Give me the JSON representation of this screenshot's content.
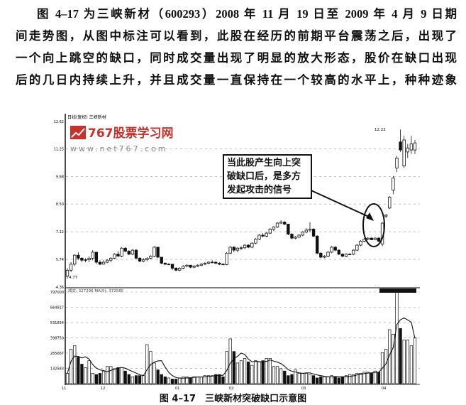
{
  "paragraph": {
    "lines": [
      "图 4–17 为三峡新材（600293）2008 年 11 月 19 日至 2009 年 4 月 9 日期",
      "间走势图，从图中标注可以看到，此股在经历的前期平台震荡之后，出现了",
      "一个向上跳空的缺口，同时成交量出现了明显的放大形态，股价在缺口出现",
      "后的几日内持续上升，并且成交量一直保持在一个较高的水平上，种种迹象"
    ]
  },
  "figure": {
    "caption": "图 4–17　三峡新材突破缺口示意图",
    "watermark": {
      "name": "767股票学习网",
      "url": "www.net767.com",
      "color": "#c8302a"
    },
    "callout": [
      "当此股产生向上突",
      "破缺口后，是多方",
      "发起攻击的信号"
    ]
  },
  "chart_data": {
    "type": "candlestick",
    "header": "日线(复权)  三峡新材",
    "volume_header": "成交: 327296 MA(5): 372585",
    "price_ticks": [
      "12.62",
      "11.25",
      "9.88",
      "8.50",
      "7.12",
      "5.74",
      "4.36"
    ],
    "ylim": [
      4.36,
      12.62
    ],
    "volume_ticks": [
      "797000",
      "664917",
      "531834",
      "398750",
      "265667",
      "132583"
    ],
    "volume_lim": [
      0,
      797000
    ],
    "x_ticks": [
      "11",
      "12",
      "01",
      "02",
      "03",
      "04"
    ],
    "annotations": {
      "low": "4.77",
      "high": "12.22"
    },
    "grid": true,
    "candles_ohlc": [
      [
        4.9,
        5.3,
        4.77,
        5.2
      ],
      [
        5.2,
        5.6,
        5.1,
        5.5
      ],
      [
        5.5,
        6.0,
        5.4,
        5.95
      ],
      [
        5.95,
        6.1,
        5.7,
        5.8
      ],
      [
        5.8,
        5.85,
        5.6,
        5.7
      ],
      [
        5.7,
        5.8,
        5.6,
        5.72
      ],
      [
        5.72,
        5.9,
        5.6,
        5.8
      ],
      [
        5.8,
        6.2,
        5.7,
        6.1
      ],
      [
        6.1,
        6.1,
        5.5,
        5.6
      ],
      [
        5.6,
        5.7,
        5.45,
        5.5
      ],
      [
        5.5,
        5.7,
        5.5,
        5.6
      ],
      [
        5.6,
        5.75,
        5.55,
        5.7
      ],
      [
        5.7,
        5.85,
        5.6,
        5.8
      ],
      [
        5.8,
        6.05,
        5.75,
        6.0
      ],
      [
        6.0,
        6.15,
        5.9,
        5.9
      ],
      [
        5.9,
        6.35,
        5.85,
        6.3
      ],
      [
        6.3,
        6.35,
        6.1,
        6.15
      ],
      [
        6.15,
        6.2,
        5.95,
        6.0
      ],
      [
        6.0,
        6.25,
        5.95,
        6.2
      ],
      [
        6.2,
        6.25,
        5.75,
        5.8
      ],
      [
        5.8,
        5.85,
        5.6,
        5.65
      ],
      [
        5.65,
        5.8,
        5.6,
        5.72
      ],
      [
        5.72,
        5.85,
        5.65,
        5.8
      ],
      [
        5.8,
        5.95,
        5.75,
        5.9
      ],
      [
        5.9,
        6.4,
        5.85,
        6.35
      ],
      [
        6.35,
        6.35,
        5.8,
        5.85
      ],
      [
        5.85,
        5.85,
        5.5,
        5.55
      ],
      [
        5.55,
        5.6,
        5.45,
        5.5
      ],
      [
        5.5,
        5.55,
        5.45,
        5.5
      ],
      [
        5.5,
        5.5,
        5.2,
        5.3
      ],
      [
        5.3,
        5.35,
        5.15,
        5.2
      ],
      [
        5.2,
        5.35,
        5.15,
        5.3
      ],
      [
        5.3,
        5.45,
        5.25,
        5.4
      ],
      [
        5.4,
        5.5,
        5.35,
        5.45
      ],
      [
        5.45,
        5.45,
        5.3,
        5.35
      ],
      [
        5.35,
        5.45,
        5.3,
        5.4
      ],
      [
        5.4,
        5.5,
        5.35,
        5.45
      ],
      [
        5.45,
        5.55,
        5.4,
        5.5
      ],
      [
        5.5,
        5.6,
        5.45,
        5.55
      ],
      [
        5.55,
        5.65,
        5.5,
        5.6
      ],
      [
        5.6,
        5.7,
        5.55,
        5.6
      ],
      [
        5.6,
        5.65,
        5.5,
        5.55
      ],
      [
        5.55,
        5.6,
        5.45,
        5.5
      ],
      [
        5.5,
        5.55,
        5.45,
        5.48
      ],
      [
        5.48,
        6.1,
        5.45,
        6.05
      ],
      [
        6.05,
        6.4,
        6.0,
        6.35
      ],
      [
        6.35,
        6.4,
        6.1,
        6.2
      ],
      [
        6.2,
        6.35,
        6.1,
        6.3
      ],
      [
        6.3,
        6.4,
        6.2,
        6.32
      ],
      [
        6.32,
        6.5,
        6.25,
        6.45
      ],
      [
        6.45,
        6.5,
        6.3,
        6.35
      ],
      [
        6.35,
        6.6,
        6.3,
        6.55
      ],
      [
        6.55,
        6.8,
        6.5,
        6.75
      ],
      [
        6.75,
        7.0,
        6.7,
        6.95
      ],
      [
        6.95,
        7.05,
        6.85,
        6.9
      ],
      [
        6.9,
        7.1,
        6.85,
        7.05
      ],
      [
        7.05,
        7.3,
        7.0,
        7.25
      ],
      [
        7.25,
        7.4,
        7.15,
        7.35
      ],
      [
        7.35,
        7.6,
        7.3,
        7.55
      ],
      [
        7.55,
        7.7,
        7.5,
        7.6
      ],
      [
        7.6,
        7.65,
        7.45,
        7.5
      ],
      [
        7.5,
        7.5,
        6.95,
        7.0
      ],
      [
        7.0,
        7.05,
        6.75,
        6.8
      ],
      [
        6.8,
        6.9,
        6.75,
        6.85
      ],
      [
        6.85,
        7.0,
        6.8,
        6.95
      ],
      [
        6.95,
        7.15,
        6.9,
        7.1
      ],
      [
        7.1,
        7.3,
        7.05,
        7.2
      ],
      [
        7.2,
        7.6,
        7.1,
        7.25
      ],
      [
        7.25,
        7.3,
        6.85,
        6.9
      ],
      [
        6.9,
        6.95,
        6.0,
        6.05
      ],
      [
        6.05,
        6.1,
        5.8,
        5.85
      ],
      [
        5.85,
        5.95,
        5.8,
        5.9
      ],
      [
        5.9,
        6.15,
        5.85,
        6.1
      ],
      [
        6.1,
        6.4,
        6.05,
        6.35
      ],
      [
        6.35,
        6.4,
        6.15,
        6.2
      ],
      [
        6.2,
        6.25,
        5.95,
        6.0
      ],
      [
        6.0,
        6.05,
        5.85,
        5.9
      ],
      [
        5.9,
        6.05,
        5.85,
        6.0
      ],
      [
        6.0,
        6.05,
        5.95,
        6.0
      ],
      [
        6.0,
        6.25,
        5.95,
        6.2
      ],
      [
        6.2,
        6.5,
        6.15,
        6.45
      ],
      [
        6.45,
        6.7,
        6.4,
        6.65
      ],
      [
        6.65,
        6.8,
        6.6,
        6.75
      ],
      [
        6.75,
        6.85,
        6.7,
        6.8
      ],
      [
        6.8,
        6.85,
        6.7,
        6.72
      ],
      [
        6.72,
        6.85,
        6.7,
        6.8
      ],
      [
        6.8,
        6.85,
        6.6,
        6.65
      ],
      [
        6.5,
        7.6,
        6.4,
        7.55
      ],
      [
        7.9,
        8.0,
        7.8,
        7.95
      ],
      [
        8.3,
        8.9,
        8.25,
        8.85
      ],
      [
        9.2,
        9.9,
        9.0,
        9.8
      ],
      [
        10.3,
        10.9,
        10.1,
        10.8
      ],
      [
        11.6,
        12.22,
        11.1,
        11.2
      ],
      [
        10.4,
        11.9,
        10.3,
        11.7
      ],
      [
        11.1,
        11.5,
        10.8,
        11.3
      ],
      [
        11.2,
        11.9,
        11.0,
        11.5
      ],
      [
        11.2,
        11.7,
        11.0,
        11.55
      ]
    ],
    "volume": [
      90,
      300,
      330,
      230,
      170,
      140,
      200,
      90,
      80,
      90,
      110,
      150,
      150,
      130,
      140,
      140,
      110,
      80,
      60,
      70,
      70,
      70,
      340,
      280,
      180,
      120,
      80,
      60,
      50,
      40,
      40,
      50,
      60,
      60,
      50,
      60,
      60,
      60,
      70,
      70,
      70,
      80,
      80,
      60,
      280,
      390,
      280,
      180,
      200,
      220,
      190,
      160,
      200,
      190,
      200,
      220,
      220,
      150,
      150,
      130,
      110,
      70,
      80,
      120,
      90,
      90,
      90,
      80,
      70,
      50,
      60,
      60,
      60,
      70,
      60,
      50,
      60,
      70,
      80,
      80,
      90,
      90,
      100,
      100,
      90,
      110,
      100,
      270,
      300,
      470,
      430,
      1100,
      480,
      380,
      380,
      330,
      400
    ]
  }
}
